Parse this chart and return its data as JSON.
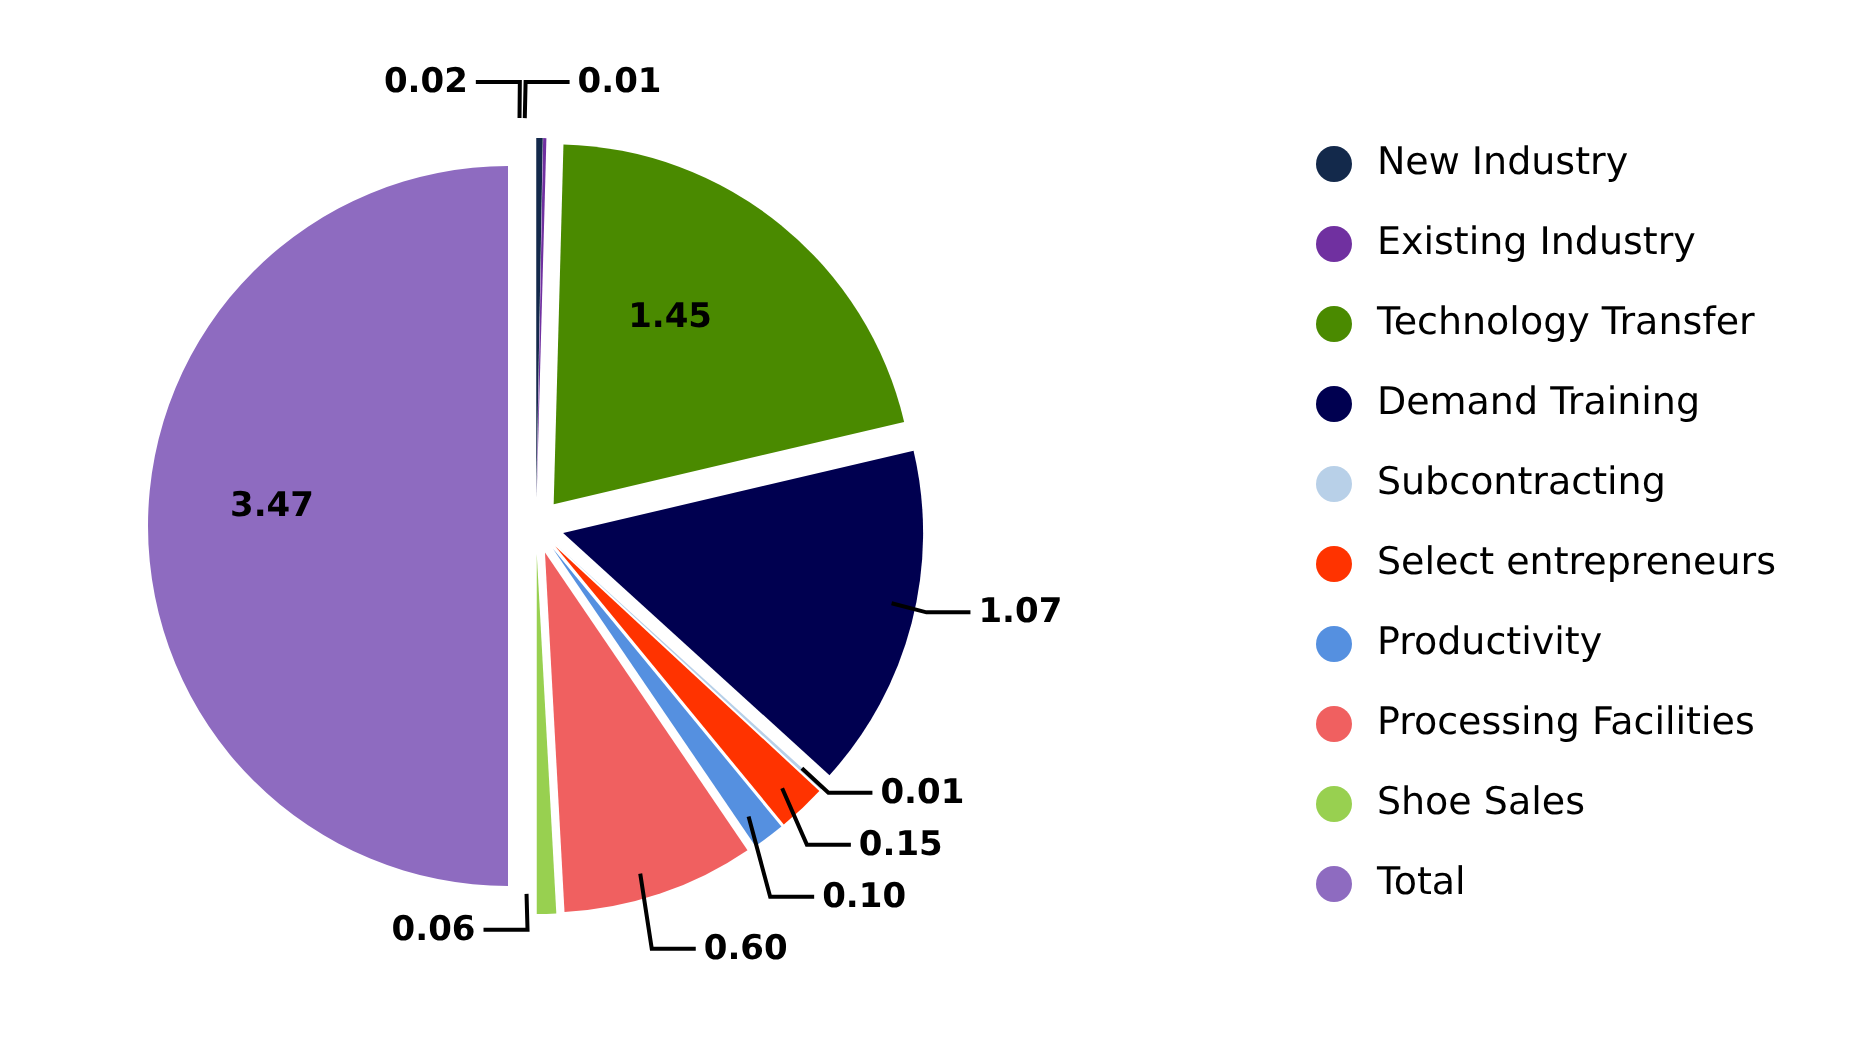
{
  "chart_data": {
    "type": "pie",
    "categories": [
      "New Industry",
      "Existing Industry",
      "Technology Transfer",
      "Demand Training",
      "Subcontracting",
      "Select entrepreneurs",
      "Productivity",
      "Processing Facilities",
      "Shoe Sales",
      "Total"
    ],
    "values": [
      0.02,
      0.01,
      1.45,
      1.07,
      0.01,
      0.15,
      0.1,
      0.6,
      0.06,
      3.47
    ],
    "value_labels": [
      "0.02",
      "0.01",
      "1.45",
      "1.07",
      "0.01",
      "0.15",
      "0.10",
      "0.60",
      "0.06",
      "3.47"
    ],
    "colors": [
      "#13294b",
      "#7030a0",
      "#4a8a00",
      "#000050",
      "#b8d0e8",
      "#ff3300",
      "#5590e0",
      "#f06060",
      "#98d050",
      "#8e6bc0"
    ],
    "legend": "right"
  }
}
